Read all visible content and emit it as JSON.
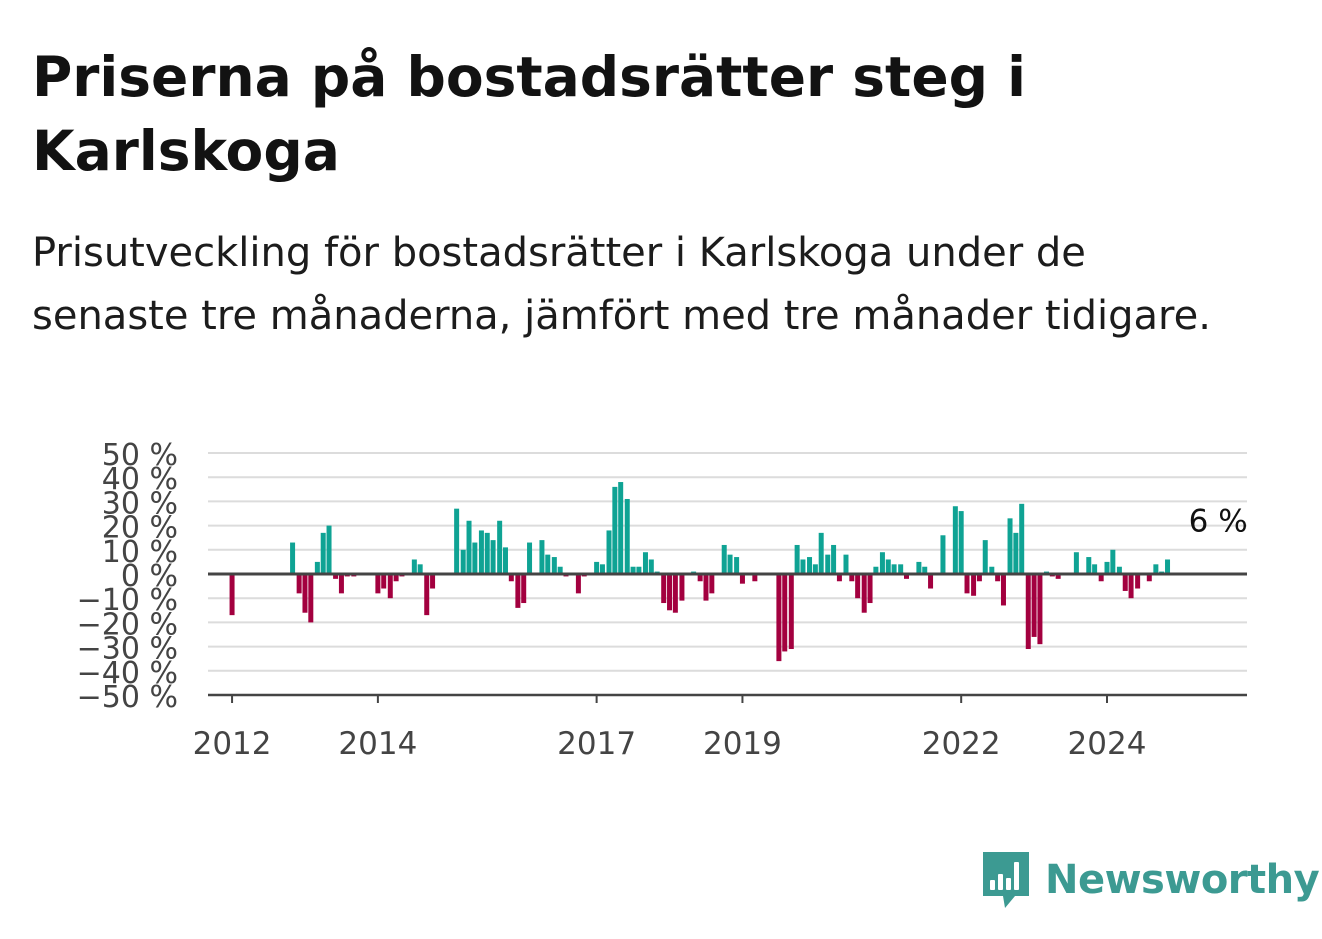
{
  "header": {
    "title": "Priserna på bostadsrätter steg i Karlskoga",
    "subtitle": "Prisutveckling för bostadsrätter i Karlskoga under de senaste tre månaderna, jämfört med tre månader tidigare."
  },
  "brand": {
    "name": "Newsworthy",
    "icon": "newsworthy-logo-icon",
    "color": "#3c9a92"
  },
  "colors": {
    "positive": "#0fa394",
    "negative": "#a3003f",
    "grid": "#dcdcdc",
    "axis": "#444444"
  },
  "chart_data": {
    "type": "bar",
    "title": "Priserna på bostadsrätter steg i Karlskoga",
    "subtitle": "Prisutveckling för bostadsrätter i Karlskoga under de senaste tre månaderna, jämfört med tre månader tidigare.",
    "xlabel": "",
    "ylabel": "",
    "unit": "%",
    "ylim": [
      -50,
      50
    ],
    "yticks": [
      50,
      40,
      30,
      20,
      10,
      0,
      -10,
      -20,
      -30,
      -40,
      -50
    ],
    "ytick_labels": [
      "50 %",
      "40 %",
      "30 %",
      "20 %",
      "10 %",
      "0 %",
      "−10 %",
      "−20 %",
      "−30 %",
      "−40 %",
      "−50 %"
    ],
    "xticks": [
      2012,
      2014,
      2017,
      2019,
      2022,
      2024
    ],
    "grid": true,
    "annotation": {
      "text": "6 %",
      "x": 2025.25,
      "y": 6
    },
    "x": [
      2012.0,
      2012.83,
      2012.92,
      2013.0,
      2013.08,
      2013.17,
      2013.25,
      2013.33,
      2013.42,
      2013.5,
      2013.58,
      2013.67,
      2014.0,
      2014.08,
      2014.17,
      2014.25,
      2014.33,
      2014.5,
      2014.58,
      2014.67,
      2014.75,
      2015.08,
      2015.17,
      2015.25,
      2015.33,
      2015.42,
      2015.5,
      2015.58,
      2015.67,
      2015.75,
      2015.83,
      2015.92,
      2016.0,
      2016.08,
      2016.25,
      2016.33,
      2016.42,
      2016.5,
      2016.58,
      2016.75,
      2016.83,
      2017.0,
      2017.08,
      2017.17,
      2017.25,
      2017.33,
      2017.42,
      2017.5,
      2017.58,
      2017.67,
      2017.75,
      2017.83,
      2017.92,
      2018.0,
      2018.08,
      2018.17,
      2018.33,
      2018.42,
      2018.5,
      2018.58,
      2018.75,
      2018.83,
      2018.92,
      2019.0,
      2019.17,
      2019.5,
      2019.58,
      2019.67,
      2019.75,
      2019.83,
      2019.92,
      2020.0,
      2020.08,
      2020.17,
      2020.25,
      2020.33,
      2020.42,
      2020.5,
      2020.58,
      2020.67,
      2020.75,
      2020.83,
      2020.92,
      2021.0,
      2021.08,
      2021.17,
      2021.25,
      2021.42,
      2021.5,
      2021.58,
      2021.75,
      2021.92,
      2022.0,
      2022.08,
      2022.17,
      2022.25,
      2022.33,
      2022.42,
      2022.5,
      2022.58,
      2022.67,
      2022.75,
      2022.83,
      2022.92,
      2023.0,
      2023.08,
      2023.17,
      2023.25,
      2023.33,
      2023.58,
      2023.75,
      2023.83,
      2023.92,
      2024.0,
      2024.08,
      2024.17,
      2024.25,
      2024.33,
      2024.42,
      2024.58,
      2024.67,
      2024.75,
      2024.83
    ],
    "values": [
      -17,
      13,
      -8,
      -16,
      -20,
      5,
      17,
      20,
      -2,
      -8,
      -1,
      -1,
      -8,
      -6,
      -10,
      -3,
      -1,
      6,
      4,
      -17,
      -6,
      27,
      10,
      22,
      13,
      18,
      17,
      14,
      22,
      11,
      -3,
      -14,
      -12,
      13,
      14,
      8,
      7,
      3,
      -1,
      -8,
      -1,
      5,
      4,
      18,
      36,
      38,
      31,
      3,
      3,
      9,
      6,
      1,
      -12,
      -15,
      -16,
      -11,
      1,
      -3,
      -11,
      -8,
      12,
      8,
      7,
      -4,
      -3,
      -36,
      -32,
      -31,
      12,
      6,
      7,
      4,
      17,
      8,
      12,
      -3,
      8,
      -3,
      -10,
      -16,
      -12,
      3,
      9,
      6,
      4,
      4,
      -2,
      5,
      3,
      -6,
      16,
      28,
      26,
      -8,
      -9,
      -3,
      14,
      3,
      -3,
      -13,
      23,
      17,
      29,
      -31,
      -26,
      -29,
      1,
      -1,
      -2,
      9,
      7,
      4,
      -3,
      5,
      10,
      3,
      -7,
      -10,
      -6,
      -3,
      4,
      1,
      6
    ]
  }
}
